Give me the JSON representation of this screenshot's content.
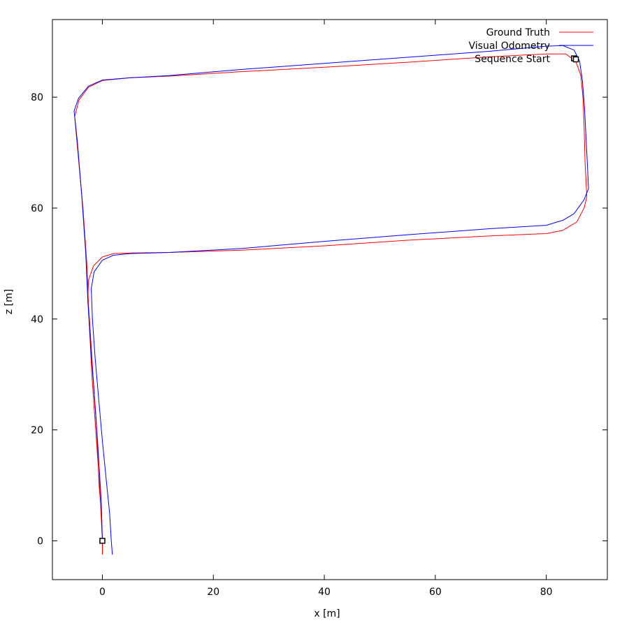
{
  "chart_data": {
    "type": "line",
    "xlabel": "x [m]",
    "ylabel": "z [m]",
    "xlim": [
      -9,
      91
    ],
    "ylim": [
      -7,
      94
    ],
    "xticks": [
      0,
      20,
      40,
      60,
      80
    ],
    "yticks": [
      0,
      20,
      40,
      60,
      80
    ],
    "grid": false,
    "legend": "top-right",
    "series": [
      {
        "name": "Ground Truth",
        "color": "#ff0000",
        "points": [
          [
            0,
            -2.5
          ],
          [
            0,
            0
          ],
          [
            -0.2,
            5
          ],
          [
            -0.6,
            10
          ],
          [
            -1.0,
            20
          ],
          [
            -1.7,
            30
          ],
          [
            -2.2,
            38
          ],
          [
            -2.6,
            44
          ],
          [
            -2.5,
            47
          ],
          [
            -1.6,
            49.6
          ],
          [
            0,
            51.2
          ],
          [
            2,
            51.8
          ],
          [
            5,
            51.9
          ],
          [
            12,
            52
          ],
          [
            25,
            52.4
          ],
          [
            40,
            53.2
          ],
          [
            55,
            54.2
          ],
          [
            70,
            55
          ],
          [
            80,
            55.4
          ],
          [
            83,
            56
          ],
          [
            85.5,
            57.5
          ],
          [
            86.8,
            60
          ],
          [
            87.3,
            62
          ],
          [
            87.2,
            64
          ],
          [
            87,
            68
          ],
          [
            86.8,
            75
          ],
          [
            86.6,
            80
          ],
          [
            86.2,
            84
          ],
          [
            85.3,
            86.5
          ],
          [
            83.5,
            87.8
          ],
          [
            80,
            87.8
          ],
          [
            70,
            87.3
          ],
          [
            55,
            86.3
          ],
          [
            40,
            85.4
          ],
          [
            25,
            84.6
          ],
          [
            12,
            83.8
          ],
          [
            5,
            83.5
          ],
          [
            0,
            83
          ],
          [
            -2.5,
            81.8
          ],
          [
            -4.2,
            79.5
          ],
          [
            -5,
            76.5
          ],
          [
            -4.4,
            70
          ],
          [
            -3.5,
            60
          ],
          [
            -2.8,
            50
          ],
          [
            -2.4,
            40
          ],
          [
            -1.9,
            30
          ],
          [
            -1.2,
            20
          ],
          [
            -0.5,
            10
          ],
          [
            0,
            0
          ]
        ]
      },
      {
        "name": "Visual Odometry",
        "color": "#0000ff",
        "points": [
          [
            1.8,
            -2.5
          ],
          [
            1.6,
            0
          ],
          [
            1.3,
            5
          ],
          [
            0.8,
            10
          ],
          [
            0,
            18
          ],
          [
            -0.7,
            26
          ],
          [
            -1.3,
            33
          ],
          [
            -1.8,
            40
          ],
          [
            -2.0,
            45.5
          ],
          [
            -1.5,
            48.5
          ],
          [
            0,
            50.6
          ],
          [
            2,
            51.5
          ],
          [
            5,
            51.8
          ],
          [
            12,
            52
          ],
          [
            25,
            52.7
          ],
          [
            40,
            54
          ],
          [
            55,
            55.2
          ],
          [
            70,
            56.3
          ],
          [
            80,
            56.9
          ],
          [
            83,
            57.8
          ],
          [
            85,
            59
          ],
          [
            86.8,
            61.5
          ],
          [
            87.6,
            63.5
          ],
          [
            87.5,
            66
          ],
          [
            87.2,
            72
          ],
          [
            86.9,
            78
          ],
          [
            86.5,
            83
          ],
          [
            86,
            86.5
          ],
          [
            85,
            88.5
          ],
          [
            83,
            89.3
          ],
          [
            80,
            89.2
          ],
          [
            70,
            88.3
          ],
          [
            55,
            87.2
          ],
          [
            40,
            86.1
          ],
          [
            25,
            85
          ],
          [
            12,
            83.9
          ],
          [
            5,
            83.5
          ],
          [
            0,
            83.1
          ],
          [
            -2.5,
            82
          ],
          [
            -4.3,
            79.8
          ],
          [
            -5.1,
            77.5
          ],
          [
            -4.5,
            72
          ],
          [
            -3.7,
            62
          ],
          [
            -3.0,
            52
          ],
          [
            -2.6,
            43
          ],
          [
            -2.1,
            35
          ],
          [
            -1.5,
            27
          ],
          [
            -0.8,
            17
          ],
          [
            -0.2,
            7
          ],
          [
            0,
            0
          ]
        ]
      },
      {
        "name": "Sequence Start",
        "color": "#000000",
        "marker": "square",
        "points": [
          [
            0,
            0
          ],
          [
            85,
            87
          ]
        ]
      }
    ]
  }
}
